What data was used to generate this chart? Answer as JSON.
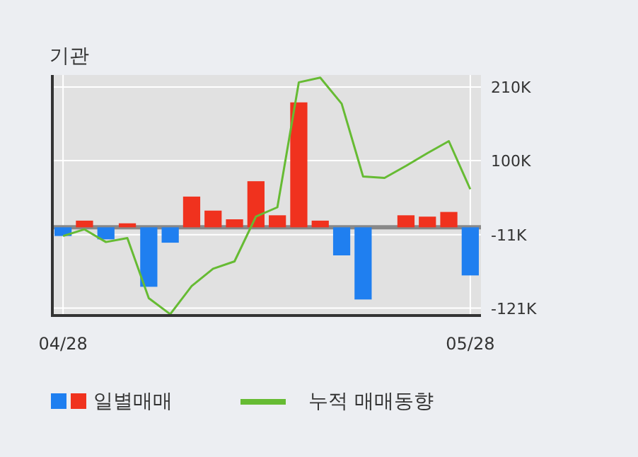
{
  "chart_data": {
    "type": "bar",
    "title": "기관",
    "categories": [
      "04/28",
      null,
      null,
      null,
      null,
      null,
      null,
      null,
      null,
      null,
      null,
      null,
      null,
      null,
      null,
      null,
      null,
      null,
      null,
      "05/28"
    ],
    "series": [
      {
        "name": "일별매매",
        "colors": [
          "#1f7ff0",
          "#f0321e",
          "#1f7ff0",
          "#f0321e",
          "#1f7ff0",
          "#1f7ff0",
          "#f0321e",
          "#f0321e",
          "#f0321e",
          "#f0321e",
          "#f0321e",
          "#f0321e",
          "#f0321e",
          "#1f7ff0",
          "#1f7ff0",
          "#f0321e",
          "#f0321e",
          "#f0321e",
          "#f0321e",
          "#1f7ff0"
        ],
        "values": [
          -13000,
          10000,
          -18000,
          6000,
          -89000,
          -23000,
          46000,
          25000,
          12000,
          69000,
          18000,
          187000,
          10000,
          -42000,
          -108000,
          0,
          18000,
          16000,
          23000,
          -72000
        ]
      },
      {
        "name": "누적 매매동향",
        "type": "line",
        "color": "#66bb33",
        "values": [
          -13000,
          -3000,
          -22000,
          -16000,
          -106000,
          -130000,
          -88000,
          -62000,
          -51000,
          16000,
          30000,
          217000,
          224000,
          185000,
          76000,
          74000,
          92000,
          111000,
          129000,
          57000
        ]
      }
    ],
    "ylim": [
      -132000,
      228000
    ],
    "yticks": [
      {
        "value": 210000,
        "label": "210K"
      },
      {
        "value": 100000,
        "label": "100K"
      },
      {
        "value": -11000,
        "label": "-11K"
      },
      {
        "value": -121000,
        "label": "-121K"
      }
    ],
    "ref_lines": [
      {
        "axis": "y",
        "value": 0,
        "color": "#888888"
      }
    ],
    "grid": true,
    "legend": "bottom"
  }
}
